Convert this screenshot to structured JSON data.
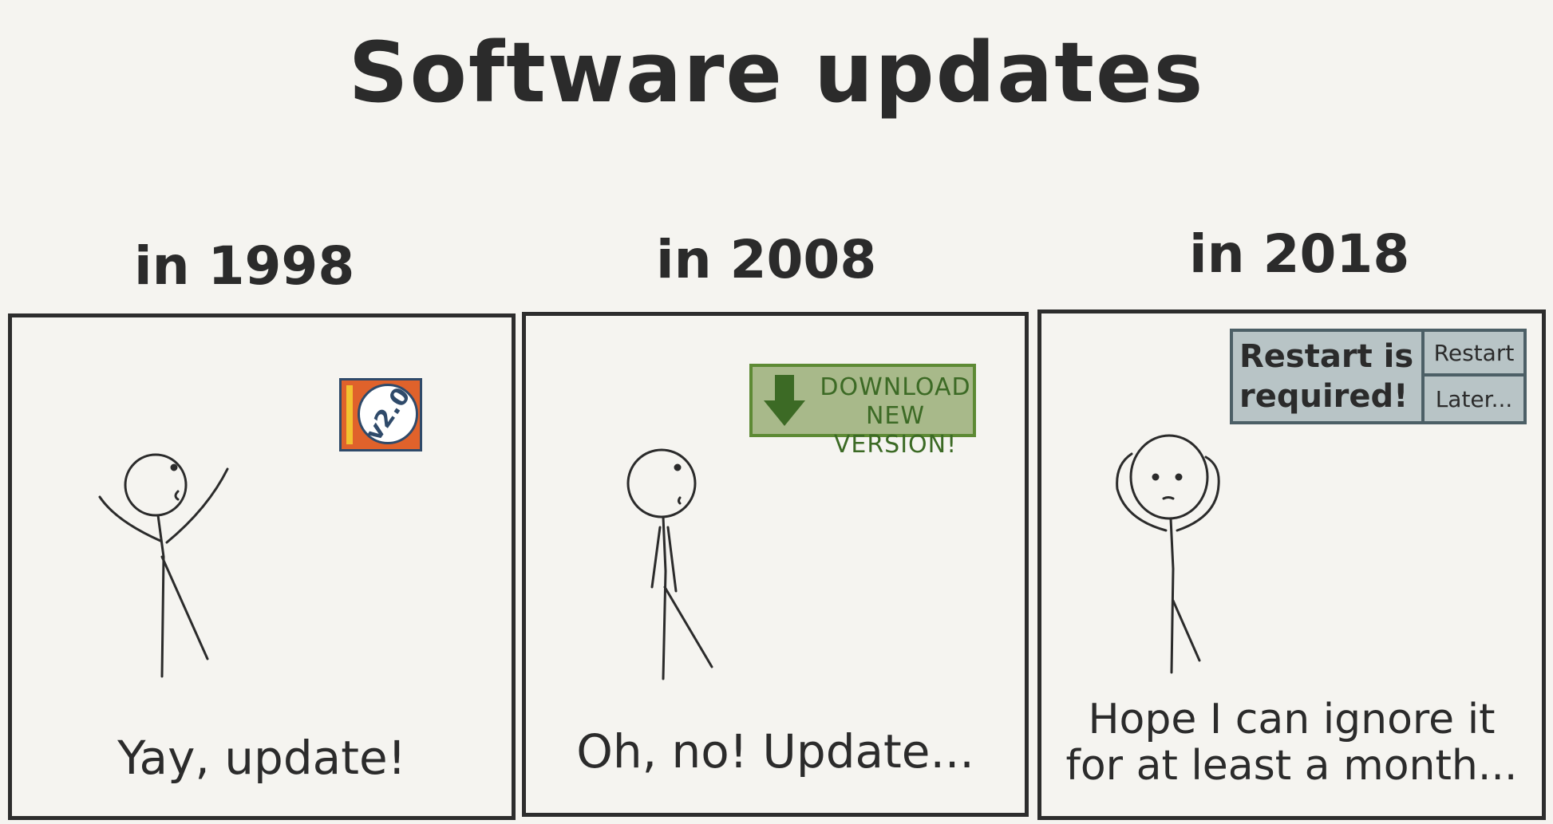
{
  "title": "Software updates",
  "panels": [
    {
      "year": "in 1998",
      "caption": "Yay, update!",
      "badge": {
        "label": "v2.0",
        "colors": {
          "box": "#e0622b",
          "strip": "#f2c230",
          "border": "#2f4a6a"
        }
      }
    },
    {
      "year": "in 2008",
      "caption": "Oh, no! Update...",
      "banner": {
        "line1": "DOWNLOAD",
        "line2": "NEW VERSION!",
        "colors": {
          "fill": "#a8b98a",
          "border": "#5d8a34",
          "arrow": "#3c6a25"
        }
      }
    },
    {
      "year": "in 2018",
      "caption_line1": "Hope I can ignore it",
      "caption_line2": "for at least a month...",
      "dialog": {
        "message": "Restart is required!",
        "restart_label": "Restart",
        "later_label": "Later...",
        "colors": {
          "fill": "#b8c4c6",
          "border": "#4c5f66"
        }
      }
    }
  ]
}
